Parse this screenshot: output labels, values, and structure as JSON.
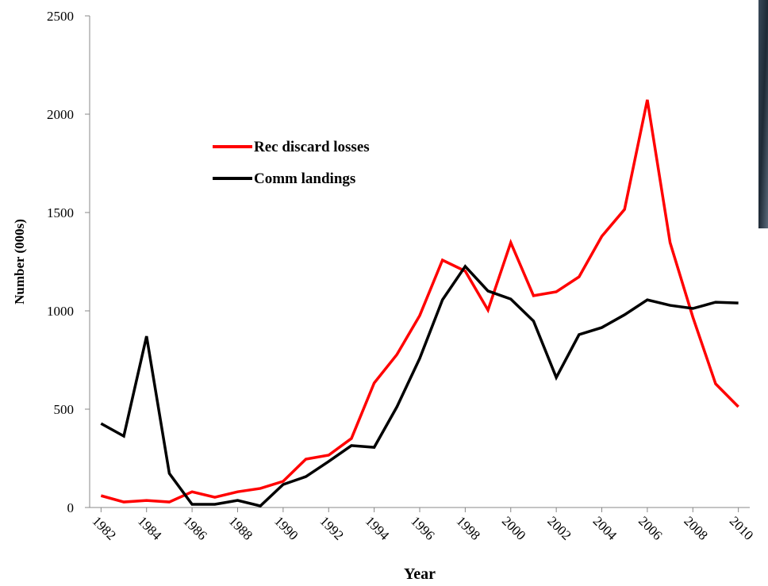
{
  "chart_data": {
    "type": "line",
    "y_label": "Number (000s)",
    "x_label": "Year",
    "x": [
      1982,
      1983,
      1984,
      1985,
      1986,
      1987,
      1988,
      1989,
      1990,
      1991,
      1992,
      1993,
      1994,
      1995,
      1996,
      1997,
      1998,
      1999,
      2000,
      2001,
      2002,
      2003,
      2004,
      2005,
      2006,
      2007,
      2008,
      2009,
      2010
    ],
    "series": [
      {
        "name": "Rec discard losses",
        "color": "#ff0000",
        "values": [
          60,
          28,
          36,
          28,
          80,
          52,
          80,
          97,
          133,
          246,
          266,
          351,
          633,
          778,
          976,
          1258,
          1202,
          1004,
          1347,
          1077,
          1097,
          1173,
          1379,
          1516,
          2073,
          1347,
          968,
          629,
          512
        ]
      },
      {
        "name": "Comm landings",
        "color": "#000000",
        "values": [
          427,
          363,
          871,
          173,
          16,
          16,
          36,
          8,
          117,
          157,
          234,
          315,
          306,
          512,
          758,
          1056,
          1226,
          1101,
          1060,
          948,
          661,
          879,
          915,
          980,
          1056,
          1028,
          1012,
          1044,
          1040
        ]
      }
    ],
    "xlim": [
      1981.5,
      2010.5
    ],
    "xticks": [
      1982,
      1984,
      1986,
      1988,
      1990,
      1992,
      1994,
      1996,
      1998,
      2000,
      2002,
      2004,
      2006,
      2008,
      2010
    ],
    "ylim": [
      0,
      2500
    ],
    "yticks": [
      0,
      500,
      1000,
      1500,
      2000,
      2500
    ],
    "grid": false,
    "legend": "upper left"
  }
}
